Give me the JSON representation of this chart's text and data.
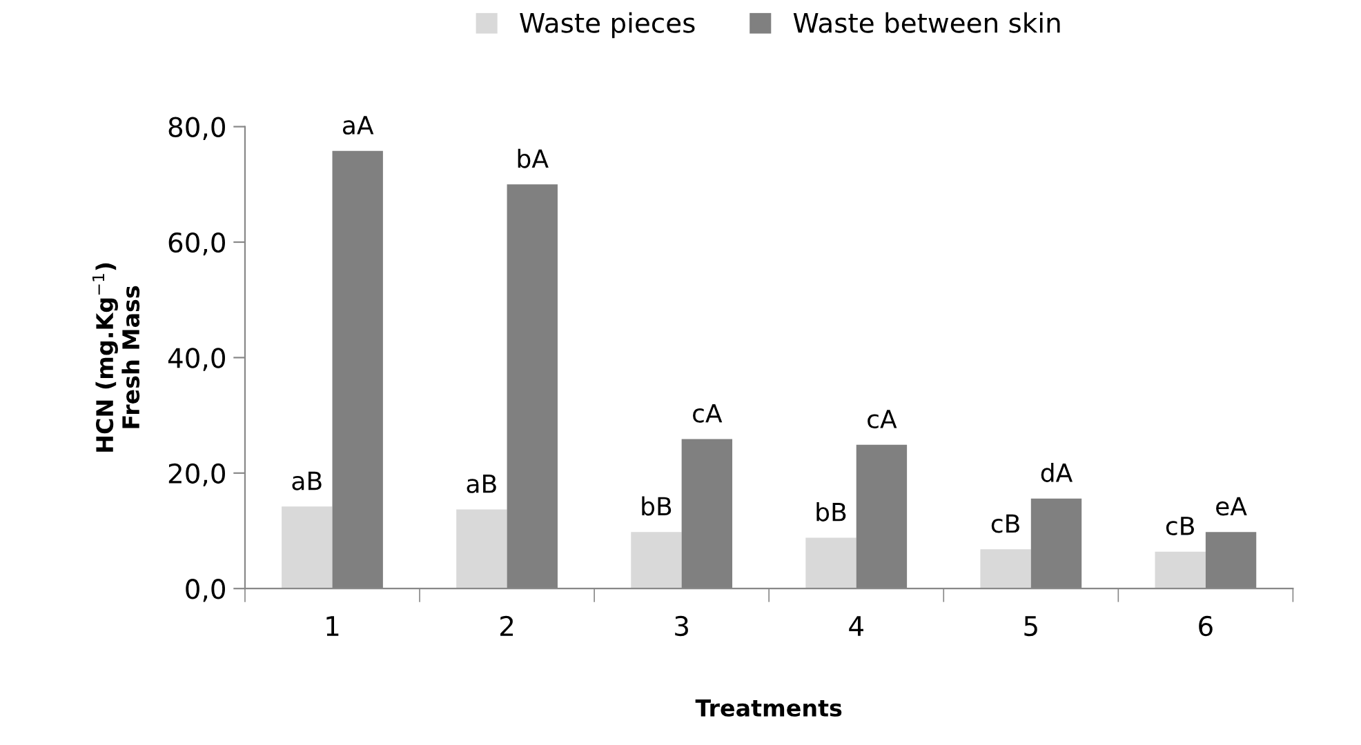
{
  "chart_data": {
    "type": "bar",
    "xlabel": "Treatments",
    "ylabel": "HCN (mg.Kg$^{−1}$)\nFresh Mass",
    "categories": [
      "1",
      "2",
      "3",
      "4",
      "5",
      "6"
    ],
    "series": [
      {
        "name": "Waste pieces",
        "color": "#d9d9d9",
        "values": [
          14.2,
          13.7,
          9.8,
          8.8,
          6.8,
          6.4
        ]
      },
      {
        "name": "Waste between skin",
        "color": "#808080",
        "values": [
          75.8,
          70.0,
          25.9,
          24.9,
          15.6,
          9.8
        ]
      }
    ],
    "ylim": [
      0,
      80
    ],
    "yticks": [
      {
        "value": 0,
        "label": "0,0"
      },
      {
        "value": 20,
        "label": "20,0"
      },
      {
        "value": 40,
        "label": "40,0"
      },
      {
        "value": 60,
        "label": "60,0"
      },
      {
        "value": 80,
        "label": "80,0"
      }
    ],
    "annotations": [
      {
        "text": "aB",
        "x": "1",
        "y": 14.2
      },
      {
        "text": "aA",
        "x": "1",
        "y": 75.8
      },
      {
        "text": "aB",
        "x": "2",
        "y": 13.7
      },
      {
        "text": "bA",
        "x": "2",
        "y": 70.0
      },
      {
        "text": "bB",
        "x": "3",
        "y": 9.8
      },
      {
        "text": "cA",
        "x": "3",
        "y": 25.9
      },
      {
        "text": "bB",
        "x": "4",
        "y": 8.8
      },
      {
        "text": "cA",
        "x": "4",
        "y": 24.9
      },
      {
        "text": "cB",
        "x": "5",
        "y": 6.8
      },
      {
        "text": "dA",
        "x": "5",
        "y": 15.6
      },
      {
        "text": "cB",
        "x": "6",
        "y": 6.4
      },
      {
        "text": "eA",
        "x": "6",
        "y": 9.8
      }
    ],
    "grid": false,
    "legend": "top"
  }
}
